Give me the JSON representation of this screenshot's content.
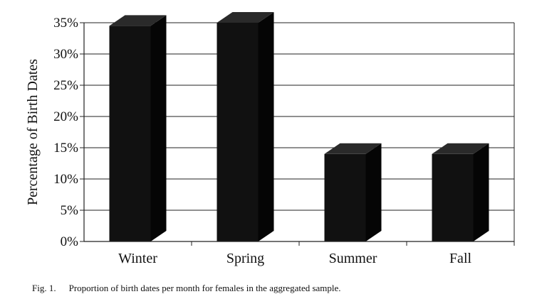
{
  "chart_data": {
    "type": "bar",
    "categories": [
      "Winter",
      "Spring",
      "Summer",
      "Fall"
    ],
    "values": [
      34.5,
      35,
      14,
      14
    ],
    "ylabel": "Percentage of Birth Dates",
    "xlabel": "",
    "ylim": [
      0,
      35
    ],
    "yticks": [
      "0%",
      "5%",
      "10%",
      "15%",
      "20%",
      "25%",
      "30%",
      "35%"
    ],
    "grid": true,
    "bar_color": "#111111",
    "style": "3d"
  },
  "caption": {
    "figure_number": "Fig. 1.",
    "text": "Proportion of birth dates per month for females in the aggregated sample."
  }
}
